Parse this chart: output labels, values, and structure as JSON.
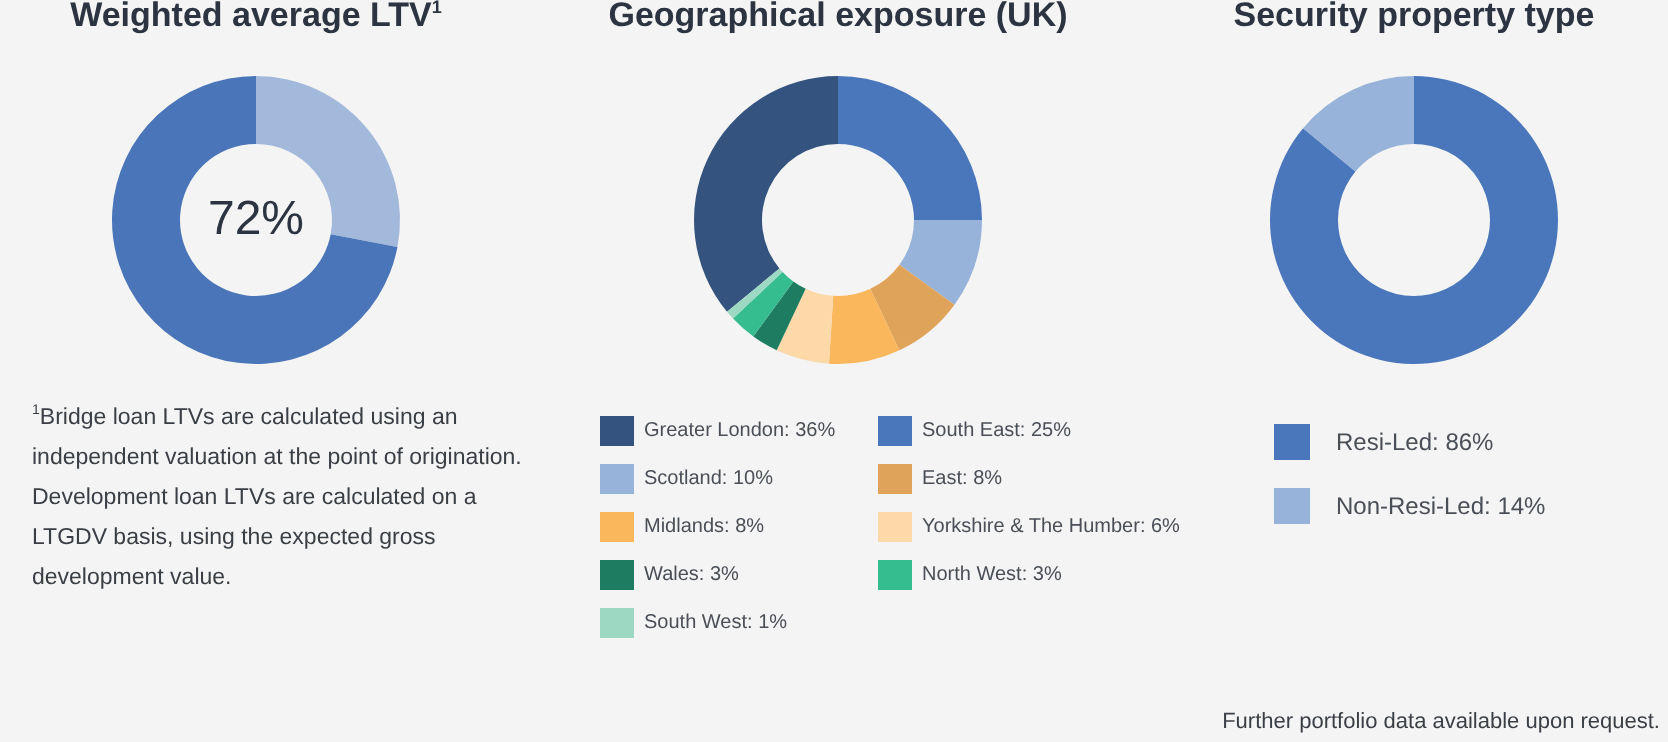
{
  "chart_data": [
    {
      "type": "donut",
      "title": "Weighted average LTV$^{1}$",
      "categories": [
        null,
        null
      ],
      "values": [
        28,
        72
      ],
      "colors": [
        "#a3b9dc",
        "#4a76b9"
      ],
      "annotations": [
        "72%",
        "$^{1}$Bridge loan LTVs are calculated using an independent valuation at the point of origination. Development loan LTVs are calculated on a LTGDV basis, using the expected gross development value."
      ]
    },
    {
      "type": "donut",
      "title": "Geographical exposure (UK)",
      "categories": [
        "Greater London",
        "South East",
        "Scotland",
        "East",
        "Midlands",
        "Yorkshire & The Humber",
        "Wales",
        "North West",
        "South West"
      ],
      "values": [
        36,
        25,
        10,
        8,
        8,
        6,
        3,
        3,
        1
      ],
      "value_labels": [
        "36%",
        "25%",
        "10%",
        "8%",
        "8%",
        "6%",
        "3%",
        "3%",
        "1%"
      ],
      "colors": [
        "#34547f",
        "#4a77bb",
        "#97b3d9",
        "#e0a35a",
        "#fbb75c",
        "#fdd8a8",
        "#1e7d60",
        "#35bc8f",
        "#9dd8c3"
      ],
      "legend": "bottom"
    },
    {
      "type": "donut",
      "title": "Security property  type",
      "categories": [
        "Resi-Led",
        "Non-Resi-Led"
      ],
      "values": [
        86,
        14
      ],
      "value_labels": [
        "86%",
        "14%"
      ],
      "colors": [
        "#4a77bb",
        "#97b3d9"
      ],
      "legend": "bottom",
      "annotations": [
        "Further portfolio data available upon request."
      ]
    }
  ]
}
